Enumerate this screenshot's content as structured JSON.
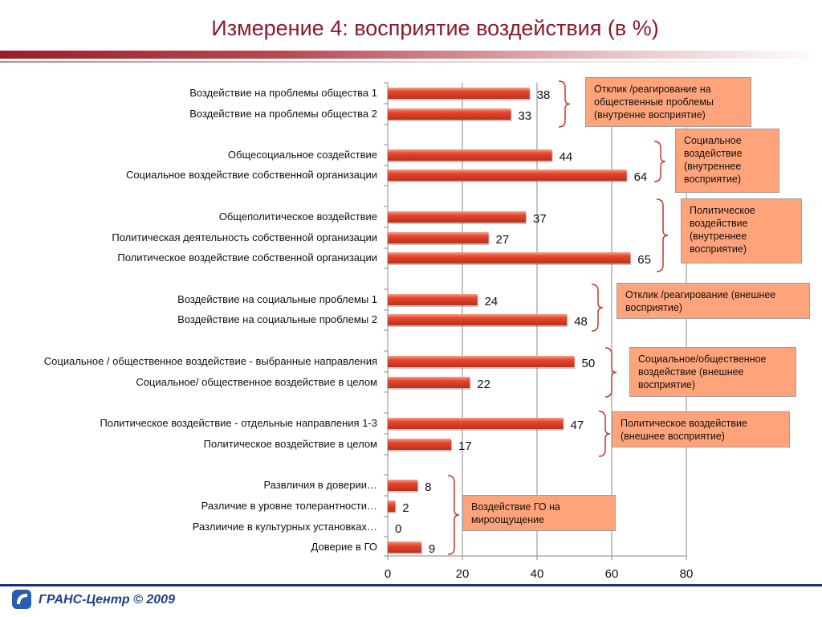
{
  "title": "Измерение 4: восприятие воздействия (в %)",
  "footer": "ГРАНС-Центр © 2009",
  "colors": {
    "bar": "#e8452c",
    "callout": "#ffa37a",
    "title": "#8b1a2b",
    "brace": "#c0392b"
  },
  "chart_data": {
    "type": "bar",
    "orientation": "horizontal",
    "categories": [
      "Воздействие на проблемы общества 1",
      "Воздействие на проблемы общества 2",
      "Общесоциальное создействие",
      "Социальное воздействие собственной организации",
      "Общеполитическое воздействие",
      "Политическая деятельность собственной организации",
      "Политическое воздействие собственной организации",
      "Воздействие на социальные проблемы 1",
      "Воздействие на социальные проблемы 2",
      "Социальное / общественное воздействие - выбранные направления",
      "Социальное/ общественное воздействие в целом",
      "Политическое воздействие - отдельные направления 1-3",
      "Политическое воздействие в целом",
      "Развличия  в доверии…",
      "Различие в уровне толерантности…",
      "Разлиичие в культурных установках…",
      "Доверие в ГО"
    ],
    "values": [
      38,
      33,
      44,
      64,
      37,
      27,
      65,
      24,
      48,
      50,
      22,
      47,
      17,
      8,
      2,
      0,
      9
    ],
    "xlim": [
      0,
      80
    ],
    "xticks": [
      0,
      20,
      40,
      60,
      80
    ],
    "groups": [
      {
        "start": 0,
        "end": 1,
        "label": "Отклик /реагирование на общественные проблемы (внутренне восприятие)"
      },
      {
        "start": 2,
        "end": 3,
        "label": "Социальное воздействие (внутреннее восприятие)"
      },
      {
        "start": 4,
        "end": 6,
        "label": "Политическое воздействие (внутреннее восприятие)"
      },
      {
        "start": 7,
        "end": 8,
        "label": "Отклик /реагирование (внешнее восприятие)"
      },
      {
        "start": 9,
        "end": 10,
        "label": "Социальное/общественное воздействие (внешнее восприятие)"
      },
      {
        "start": 11,
        "end": 12,
        "label": "Политическое воздействие (внешнее восприятие)"
      },
      {
        "start": 13,
        "end": 16,
        "label": "Воздействие ГО на мироощущение"
      }
    ]
  }
}
